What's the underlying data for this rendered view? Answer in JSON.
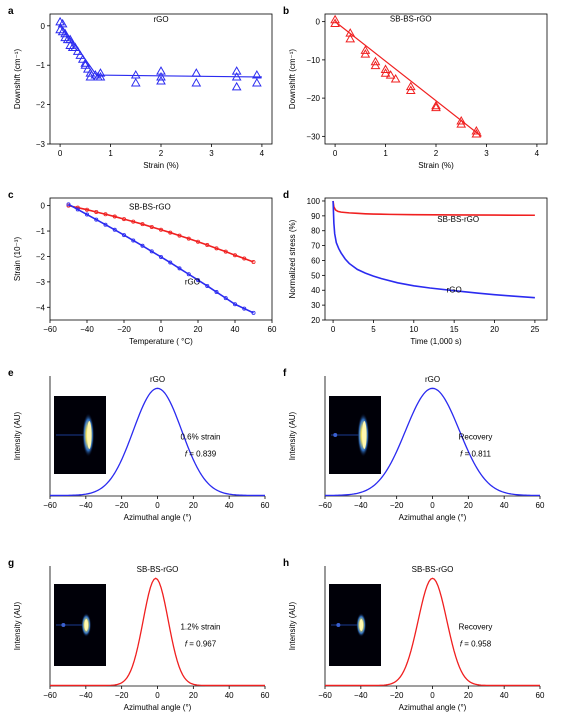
{
  "colors": {
    "blue": "#2b2bf0",
    "red": "#f02020",
    "black": "#000000"
  },
  "chart_data": [
    {
      "id": "a",
      "type": "scatter",
      "panel_label": "a",
      "xlabel": "Strain (%)",
      "ylabel": "Downshift (cm⁻¹)",
      "xlim": [
        -0.2,
        4.2
      ],
      "ylim": [
        -3,
        0.3
      ],
      "xticks": [
        0,
        1,
        2,
        3,
        4
      ],
      "yticks": [
        0,
        -1,
        -2,
        -3
      ],
      "annotations": [
        {
          "text": "rGO",
          "x": 2.0,
          "y": 0.1,
          "color": "blue"
        }
      ],
      "series": [
        {
          "color": "blue",
          "marker": "triangle-open",
          "x": [
            0,
            0,
            0.05,
            0.05,
            0.1,
            0.1,
            0.15,
            0.2,
            0.2,
            0.25,
            0.3,
            0.35,
            0.4,
            0.45,
            0.5,
            0.5,
            0.55,
            0.6,
            0.6,
            0.7,
            0.75,
            0.8,
            0.8,
            1.5,
            1.5,
            2.0,
            2.0,
            2.0,
            2.7,
            2.7,
            3.5,
            3.5,
            3.5,
            3.9,
            3.9
          ],
          "y": [
            0.1,
            -0.1,
            0.05,
            -0.15,
            -0.2,
            -0.3,
            -0.35,
            -0.5,
            -0.35,
            -0.55,
            -0.55,
            -0.65,
            -0.75,
            -0.85,
            -0.95,
            -1.0,
            -1.1,
            -1.2,
            -1.3,
            -1.25,
            -1.3,
            -1.2,
            -1.3,
            -1.25,
            -1.45,
            -1.15,
            -1.3,
            -1.4,
            -1.2,
            -1.45,
            -1.15,
            -1.3,
            -1.55,
            -1.25,
            -1.45
          ]
        }
      ],
      "fit": {
        "color": "blue",
        "x": [
          0,
          0.72,
          4.0
        ],
        "y": [
          0.05,
          -1.25,
          -1.3
        ]
      }
    },
    {
      "id": "b",
      "type": "scatter",
      "panel_label": "b",
      "xlabel": "Strain (%)",
      "ylabel": "Downshift (cm⁻¹)",
      "xlim": [
        -0.2,
        4.2
      ],
      "ylim": [
        -32,
        2
      ],
      "xticks": [
        0,
        1,
        2,
        3,
        4
      ],
      "yticks": [
        0,
        -10,
        -20,
        -30
      ],
      "annotations": [
        {
          "text": "SB-BS-rGO",
          "x": 1.5,
          "y": 0,
          "color": "red"
        }
      ],
      "series": [
        {
          "color": "red",
          "marker": "triangle-open",
          "x": [
            0,
            0,
            0.3,
            0.3,
            0.6,
            0.6,
            0.8,
            0.8,
            1.0,
            1.0,
            1.1,
            1.2,
            1.5,
            1.5,
            2.0,
            2.0,
            2.5,
            2.5,
            2.8,
            2.8
          ],
          "y": [
            0.5,
            -0.5,
            -3,
            -4.5,
            -7.5,
            -8.5,
            -10.5,
            -11.5,
            -12.5,
            -13.5,
            -14,
            -15,
            -17,
            -18,
            -22,
            -22.5,
            -26,
            -26.8,
            -28.6,
            -29.4
          ]
        }
      ],
      "fit": {
        "color": "red",
        "x": [
          0,
          2.9
        ],
        "y": [
          0,
          -30
        ]
      }
    },
    {
      "id": "c",
      "type": "line",
      "panel_label": "c",
      "xlabel": "Temperature ( °C)",
      "ylabel": "Strain (10⁻³)",
      "xlim": [
        -60,
        60
      ],
      "ylim": [
        -4.5,
        0.3
      ],
      "xticks": [
        -60,
        -40,
        -20,
        0,
        20,
        40,
        60
      ],
      "yticks": [
        0,
        -1,
        -2,
        -3,
        -4
      ],
      "annotations": [
        {
          "text": "SB-BS-rGO",
          "x": -6,
          "y": -0.15,
          "color": "red"
        },
        {
          "text": "rGO",
          "x": 17,
          "y": -3.1,
          "color": "blue"
        }
      ],
      "series": [
        {
          "color": "red",
          "x": [
            -50,
            -45,
            -40,
            -35,
            -30,
            -25,
            -20,
            -15,
            -10,
            -5,
            0,
            5,
            10,
            15,
            20,
            25,
            30,
            35,
            40,
            45,
            50
          ],
          "y": [
            0,
            -0.08,
            -0.16,
            -0.25,
            -0.34,
            -0.43,
            -0.53,
            -0.63,
            -0.73,
            -0.84,
            -0.95,
            -1.06,
            -1.18,
            -1.3,
            -1.42,
            -1.55,
            -1.68,
            -1.81,
            -1.95,
            -2.08,
            -2.22
          ]
        },
        {
          "color": "blue",
          "x": [
            -50,
            -45,
            -40,
            -35,
            -30,
            -25,
            -20,
            -15,
            -10,
            -5,
            0,
            5,
            10,
            15,
            20,
            25,
            30,
            35,
            40,
            45,
            50
          ],
          "y": [
            0.05,
            -0.15,
            -0.35,
            -0.55,
            -0.75,
            -0.95,
            -1.16,
            -1.37,
            -1.58,
            -1.8,
            -2.02,
            -2.24,
            -2.47,
            -2.7,
            -2.93,
            -3.16,
            -3.4,
            -3.64,
            -3.88,
            -4.05,
            -4.22
          ]
        }
      ]
    },
    {
      "id": "d",
      "type": "line",
      "panel_label": "d",
      "xlabel": "Time (1,000 s)",
      "ylabel": "Normalized stress (%)",
      "xlim": [
        -1,
        26.5
      ],
      "ylim": [
        20,
        102
      ],
      "xticks": [
        0,
        5,
        10,
        15,
        20,
        25
      ],
      "yticks": [
        20,
        30,
        40,
        50,
        60,
        70,
        80,
        90,
        100
      ],
      "annotations": [
        {
          "text": "SB-BS-rGO",
          "x": 15.5,
          "y": 86,
          "color": "red"
        },
        {
          "text": "rGO",
          "x": 15,
          "y": 38.5,
          "color": "blue"
        }
      ],
      "series": [
        {
          "color": "red",
          "x": [
            0,
            0.1,
            0.3,
            0.6,
            1,
            2,
            3,
            4,
            5,
            7,
            10,
            15,
            20,
            25
          ],
          "y": [
            100,
            96,
            94,
            93,
            92.5,
            92,
            91.7,
            91.4,
            91.2,
            91,
            90.8,
            90.6,
            90.5,
            90.4
          ]
        },
        {
          "color": "blue",
          "x": [
            0,
            0.1,
            0.2,
            0.4,
            0.7,
            1,
            1.5,
            2,
            3,
            4,
            5,
            6,
            8,
            10,
            12,
            15,
            18,
            20,
            22,
            25
          ],
          "y": [
            100,
            85,
            78,
            72,
            68,
            65,
            61,
            58,
            54,
            51.5,
            49.5,
            47.8,
            45,
            43,
            41.5,
            39.7,
            38,
            37,
            36.2,
            35
          ]
        }
      ]
    },
    {
      "id": "e",
      "type": "line",
      "panel_label": "e",
      "xlabel": "Azimuthal angle (°)",
      "ylabel": "Intensity (AU)",
      "xlim": [
        -60,
        60
      ],
      "xticks": [
        -60,
        -40,
        -20,
        0,
        20,
        40,
        60
      ],
      "annotations": [
        {
          "text": "rGO",
          "color": "blue"
        },
        {
          "text": "0.6% strain",
          "color": "blue"
        },
        {
          "text": "f = 0.839",
          "color": "blue"
        }
      ],
      "series": [
        {
          "color": "blue",
          "shape": "gaussian",
          "center": 0,
          "sigma": 13.5
        }
      ],
      "inset": "diffraction-pattern"
    },
    {
      "id": "f",
      "type": "line",
      "panel_label": "f",
      "xlabel": "Azimuthal angle (°)",
      "ylabel": "Intensity (AU)",
      "xlim": [
        -60,
        60
      ],
      "xticks": [
        -60,
        -40,
        -20,
        0,
        20,
        40,
        60
      ],
      "annotations": [
        {
          "text": "rGO",
          "color": "blue"
        },
        {
          "text": "Recovery",
          "color": "blue"
        },
        {
          "text": "f = 0.811",
          "color": "blue"
        }
      ],
      "series": [
        {
          "color": "blue",
          "shape": "gaussian",
          "center": 0,
          "sigma": 15
        }
      ],
      "inset": "diffraction-pattern"
    },
    {
      "id": "g",
      "type": "line",
      "panel_label": "g",
      "xlabel": "Azimuthal angle (°)",
      "ylabel": "Intensity (AU)",
      "xlim": [
        -60,
        60
      ],
      "xticks": [
        -60,
        -40,
        -20,
        0,
        20,
        40,
        60
      ],
      "annotations": [
        {
          "text": "SB-BS-rGO",
          "color": "red"
        },
        {
          "text": "1.2% strain",
          "color": "red"
        },
        {
          "text": "f = 0.967",
          "color": "red"
        }
      ],
      "series": [
        {
          "color": "red",
          "shape": "gaussian",
          "center": -1,
          "sigma": 7
        }
      ],
      "inset": "diffraction-pattern"
    },
    {
      "id": "h",
      "type": "line",
      "panel_label": "h",
      "xlabel": "Azimuthal angle (°)",
      "ylabel": "Intensity (AU)",
      "xlim": [
        -60,
        60
      ],
      "xticks": [
        -60,
        -40,
        -20,
        0,
        20,
        40,
        60
      ],
      "annotations": [
        {
          "text": "SB-BS-rGO",
          "color": "red"
        },
        {
          "text": "Recovery",
          "color": "red"
        },
        {
          "text": "f = 0.958",
          "color": "red"
        }
      ],
      "series": [
        {
          "color": "red",
          "shape": "gaussian",
          "center": 0,
          "sigma": 8
        }
      ],
      "inset": "diffraction-pattern"
    }
  ]
}
